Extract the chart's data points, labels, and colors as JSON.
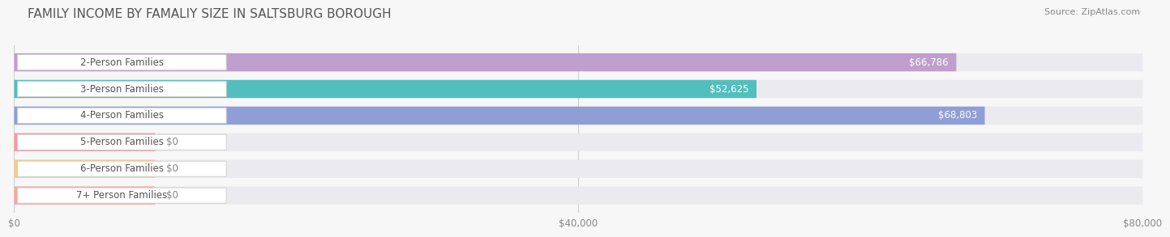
{
  "title": "FAMILY INCOME BY FAMALIY SIZE IN SALTSBURG BOROUGH",
  "source": "Source: ZipAtlas.com",
  "categories": [
    "2-Person Families",
    "3-Person Families",
    "4-Person Families",
    "5-Person Families",
    "6-Person Families",
    "7+ Person Families"
  ],
  "values": [
    66786,
    52625,
    68803,
    0,
    0,
    0
  ],
  "bar_colors": [
    "#c09ece",
    "#52bfbe",
    "#8f9fd6",
    "#f598a8",
    "#f5c98a",
    "#f4a8a0"
  ],
  "xlim": [
    0,
    80000
  ],
  "xtick_labels": [
    "$0",
    "$40,000",
    "$80,000"
  ],
  "xtick_vals": [
    0,
    40000,
    80000
  ],
  "background_color": "#f7f7f7",
  "row_bg_color": "#ebebef",
  "title_fontsize": 11,
  "label_fontsize": 8.5,
  "value_fontsize": 8.5,
  "source_fontsize": 8
}
